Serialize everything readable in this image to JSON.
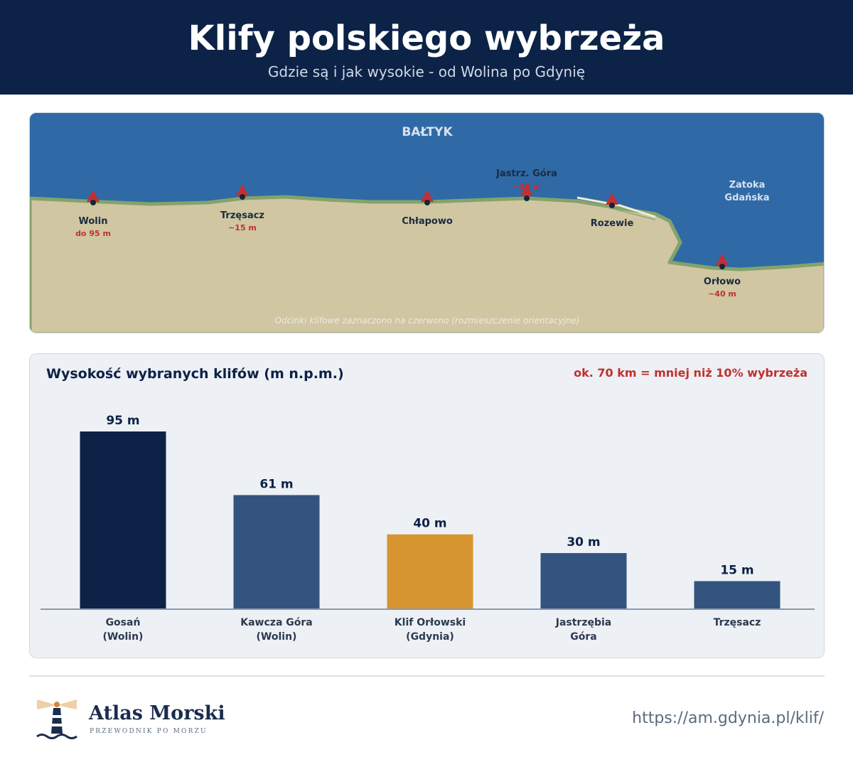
{
  "header": {
    "title": "Klify polskiego wybrzeża",
    "subtitle": "Gdzie są i jak wysokie - od Wolina po Gdynię"
  },
  "map": {
    "sea_label": "BAŁTYK",
    "bay_label_line1": "Zatoka",
    "bay_label_line2": "Gdańska",
    "note": "Odcinki klifowe zaznaczono na czerwono (rozmieszczenie orientacyjne)",
    "places": [
      {
        "name": "Wolin",
        "height": "do 95 m"
      },
      {
        "name": "Trzęsacz",
        "height": "~15 m"
      },
      {
        "name": "Chłapowo",
        "height": ""
      },
      {
        "name": "Jastrz. Góra",
        "height": "~30 m"
      },
      {
        "name": "Rozewie",
        "height": ""
      },
      {
        "name": "Orłowo",
        "height": "~40 m"
      }
    ]
  },
  "chart_data": {
    "type": "bar",
    "title": "Wysokość wybranych klifów (m n.p.m.)",
    "annotation": "ok. 70 km = mniej niż 10% wybrzeża",
    "unit": "m",
    "categories": [
      [
        "Gosań",
        "(Wolin)"
      ],
      [
        "Kawcza Góra",
        "(Wolin)"
      ],
      [
        "Klif Orłowski",
        "(Gdynia)"
      ],
      [
        "Jastrzębia",
        "Góra"
      ],
      [
        "Trzęsacz"
      ]
    ],
    "values": [
      95,
      61,
      40,
      30,
      15
    ],
    "value_labels": [
      "95 m",
      "61 m",
      "40 m",
      "30 m",
      "15 m"
    ],
    "colors": [
      "#0c2347",
      "#33547f",
      "#d6952e",
      "#33547f",
      "#33547f"
    ],
    "ylim": [
      0,
      95
    ],
    "grid": false,
    "legend": "none"
  },
  "footer": {
    "brand": "Atlas Morski",
    "tagline": "PRZEWODNIK PO MORZU",
    "url": "https://am.gdynia.pl/klif/"
  },
  "icons": {
    "logo": "lighthouse-icon",
    "cliff_marker": "triangle-marker-icon"
  }
}
